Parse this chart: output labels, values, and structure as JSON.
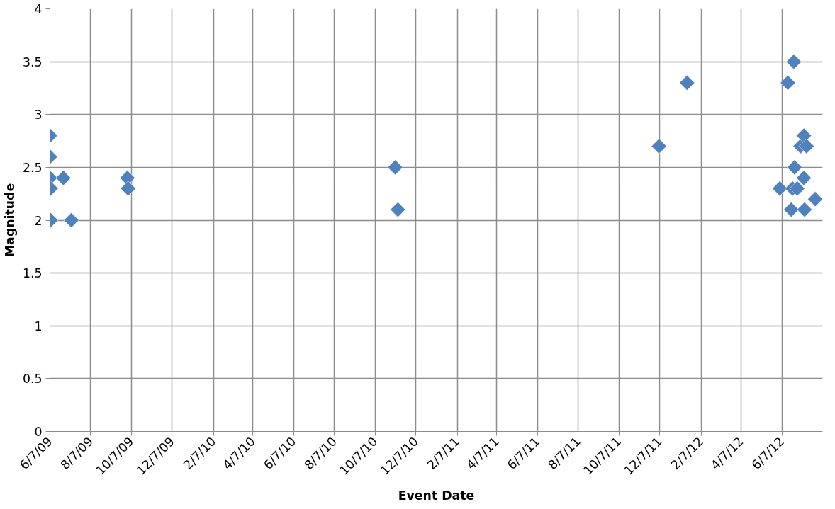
{
  "chart_data": {
    "type": "scatter",
    "xlabel": "Event Date",
    "ylabel": "Magnitude",
    "marker": "diamond",
    "grid": true,
    "xlim": [
      "2009-06-07",
      "2012-08-07"
    ],
    "ylim": [
      0,
      4
    ],
    "yticks": [
      0,
      0.5,
      1,
      1.5,
      2,
      2.5,
      3,
      3.5,
      4
    ],
    "xticks": [
      {
        "value": "2009-06-07",
        "label": "6/7/09"
      },
      {
        "value": "2009-08-07",
        "label": "8/7/09"
      },
      {
        "value": "2009-10-07",
        "label": "10/7/09"
      },
      {
        "value": "2009-12-07",
        "label": "12/7/09"
      },
      {
        "value": "2010-02-07",
        "label": "2/7/10"
      },
      {
        "value": "2010-04-07",
        "label": "4/7/10"
      },
      {
        "value": "2010-06-07",
        "label": "6/7/10"
      },
      {
        "value": "2010-08-07",
        "label": "8/7/10"
      },
      {
        "value": "2010-10-07",
        "label": "10/7/10"
      },
      {
        "value": "2010-12-07",
        "label": "12/7/10"
      },
      {
        "value": "2011-02-07",
        "label": "2/7/11"
      },
      {
        "value": "2011-04-07",
        "label": "4/7/11"
      },
      {
        "value": "2011-06-07",
        "label": "6/7/11"
      },
      {
        "value": "2011-08-07",
        "label": "8/7/11"
      },
      {
        "value": "2011-10-07",
        "label": "10/7/11"
      },
      {
        "value": "2011-12-07",
        "label": "12/7/11"
      },
      {
        "value": "2012-02-07",
        "label": "2/7/12"
      },
      {
        "value": "2012-04-07",
        "label": "4/7/12"
      },
      {
        "value": "2012-06-07",
        "label": "6/7/12"
      }
    ],
    "series": [
      {
        "color": "#4f81bd",
        "x": [
          "2009-06-07",
          "2009-06-07",
          "2009-06-07",
          "2009-06-08",
          "2009-06-08",
          "2009-06-27",
          "2009-07-09",
          "2009-10-01",
          "2009-10-02",
          "2010-11-06",
          "2010-11-10",
          "2011-12-06",
          "2012-01-17",
          "2012-06-04",
          "2012-06-16",
          "2012-06-21",
          "2012-06-25",
          "2012-06-26",
          "2012-06-23",
          "2012-06-30",
          "2012-07-05",
          "2012-07-10",
          "2012-07-10",
          "2012-07-11",
          "2012-07-14",
          "2012-07-27"
        ],
        "values": [
          2.8,
          2.6,
          2.4,
          2.3,
          2.0,
          2.4,
          2.0,
          2.4,
          2.3,
          2.5,
          2.1,
          2.7,
          3.3,
          2.3,
          3.3,
          2.1,
          3.5,
          2.5,
          2.3,
          2.3,
          2.7,
          2.8,
          2.4,
          2.1,
          2.7,
          2.2
        ]
      }
    ]
  }
}
